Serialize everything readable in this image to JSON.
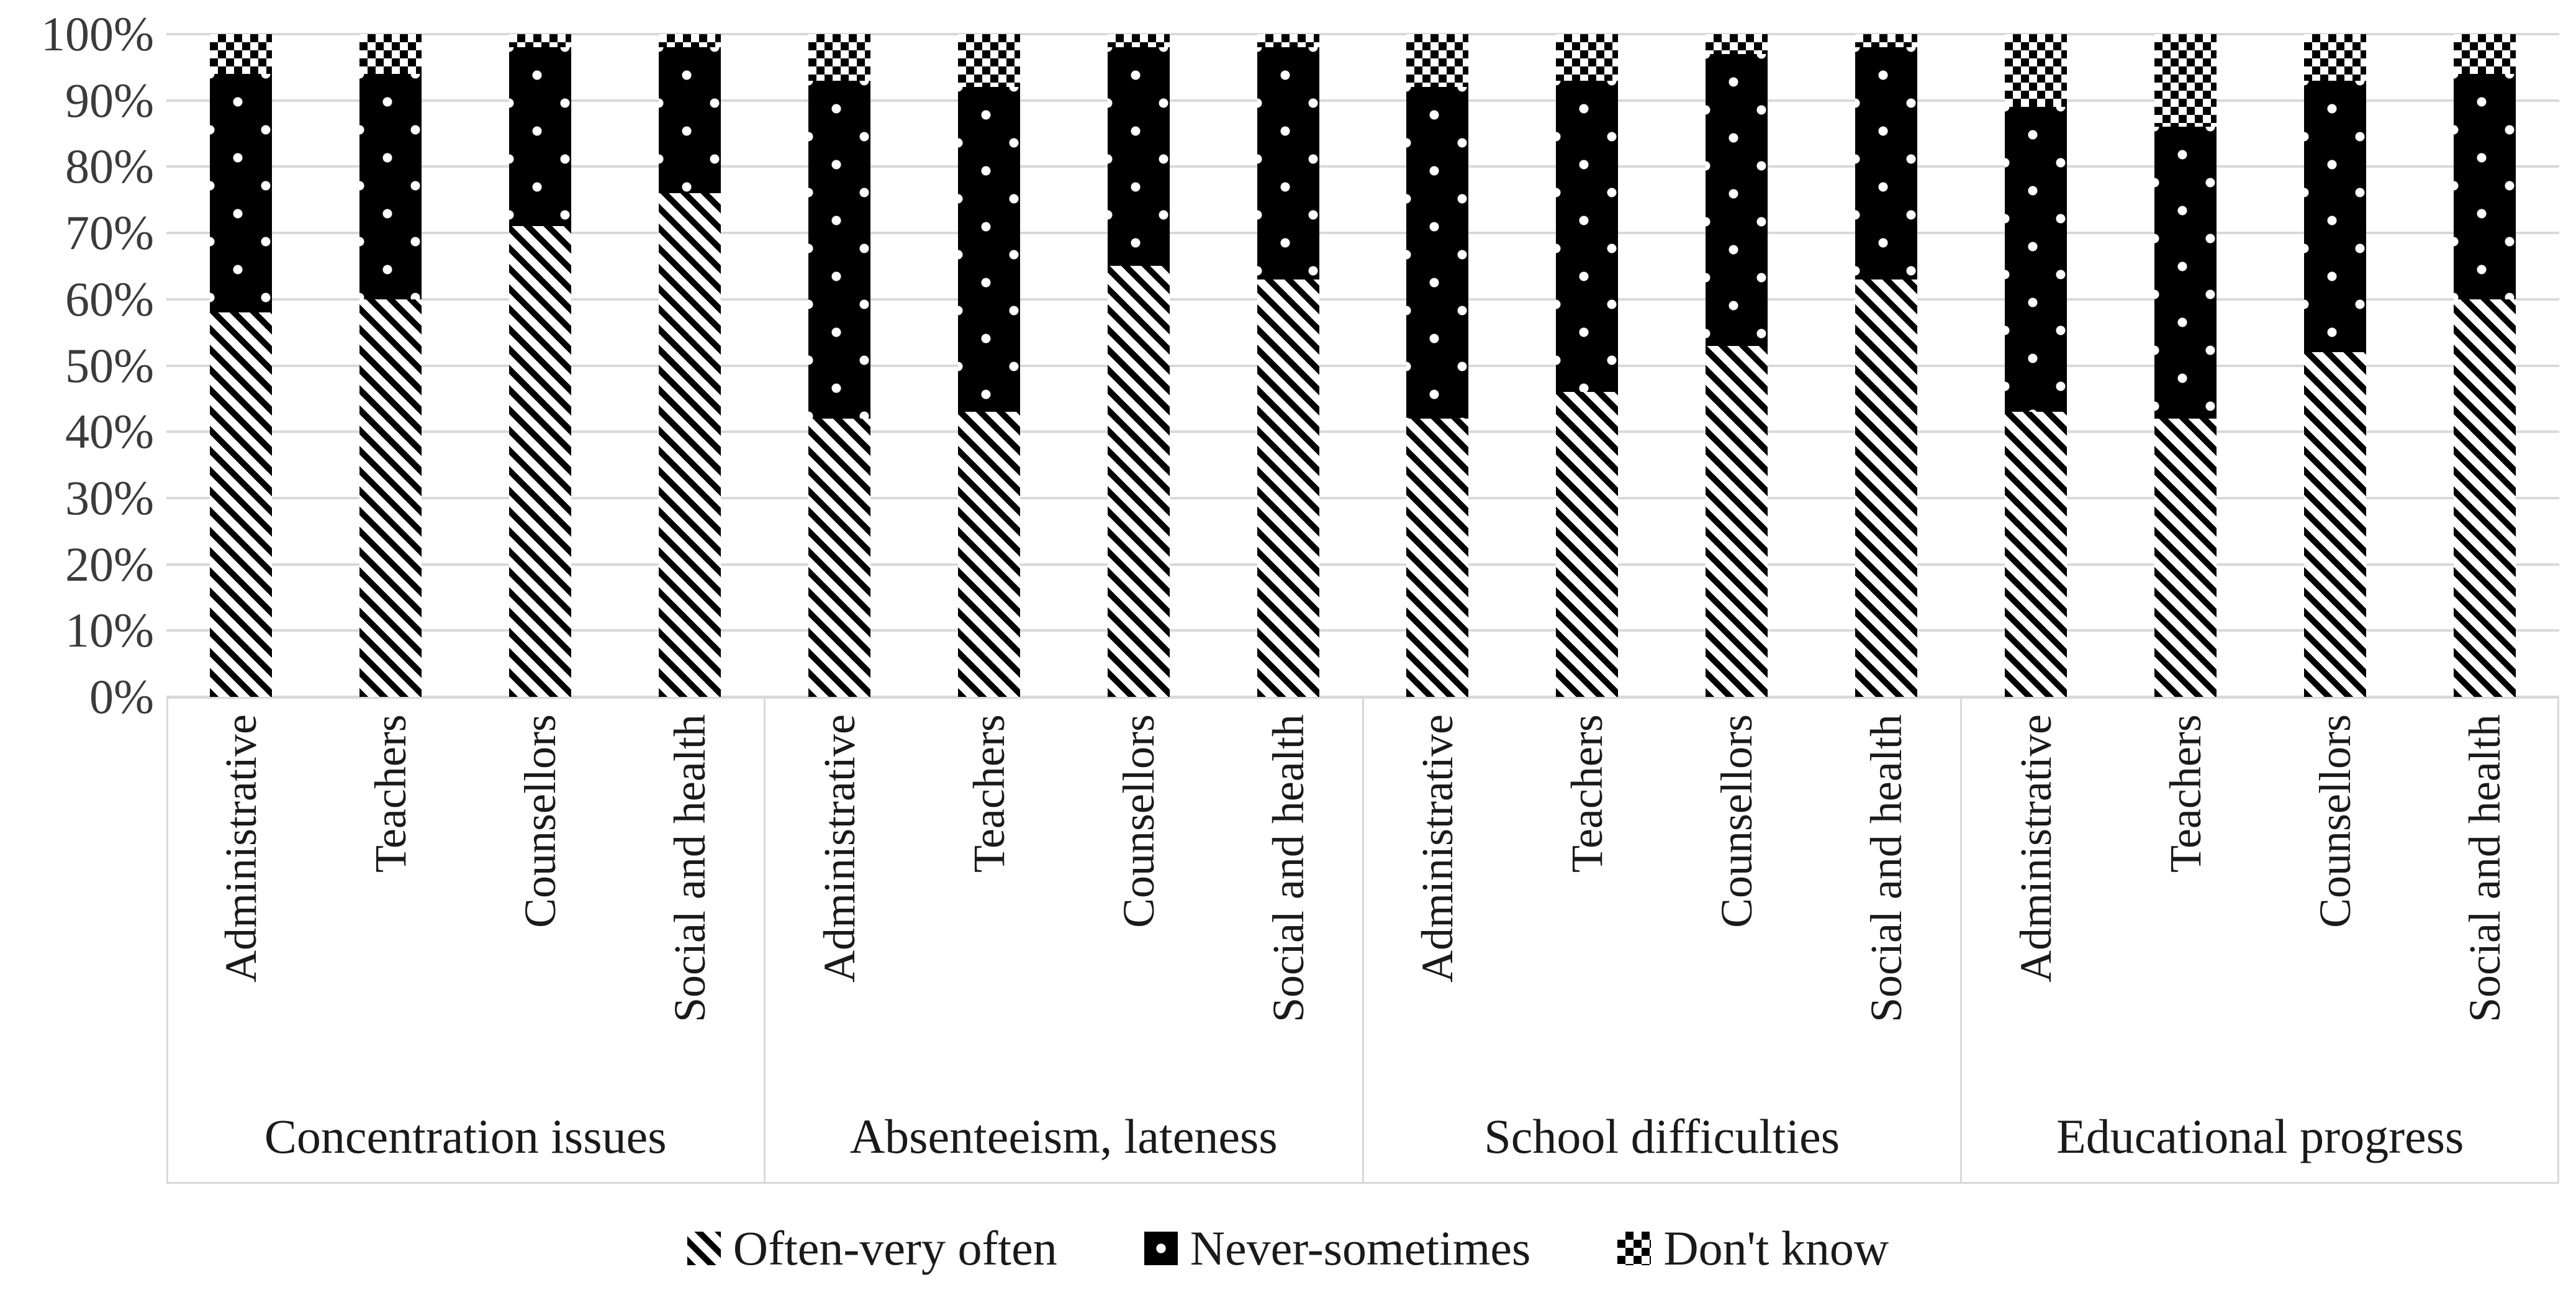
{
  "chart_data": {
    "type": "bar",
    "stacked": true,
    "orientation": "vertical",
    "unit": "%",
    "ylim": [
      0,
      100
    ],
    "grid": true,
    "y_ticks": [
      "0%",
      "10%",
      "20%",
      "30%",
      "40%",
      "50%",
      "60%",
      "70%",
      "80%",
      "90%",
      "100%"
    ],
    "legend_position": "bottom-center",
    "series_order": [
      "often_very_often",
      "never_sometimes",
      "dont_know"
    ],
    "legend": [
      {
        "key": "often_very_often",
        "name": "Often-very often",
        "pattern": "diagonal-stripes"
      },
      {
        "key": "never_sometimes",
        "name": "Never-sometimes",
        "pattern": "black-with-white-dots"
      },
      {
        "key": "dont_know",
        "name": "Don't know",
        "pattern": "diagonal-checker"
      }
    ],
    "groups": [
      {
        "label": "Concentration issues",
        "bars": [
          {
            "category": "Administrative",
            "often_very_often": 58,
            "never_sometimes": 36,
            "dont_know": 6
          },
          {
            "category": "Teachers",
            "often_very_often": 60,
            "never_sometimes": 34,
            "dont_know": 6
          },
          {
            "category": "Counsellors",
            "often_very_often": 71,
            "never_sometimes": 27,
            "dont_know": 2
          },
          {
            "category": "Social and health",
            "often_very_often": 76,
            "never_sometimes": 22,
            "dont_know": 2
          }
        ]
      },
      {
        "label": "Absenteeism, lateness",
        "bars": [
          {
            "category": "Administrative",
            "often_very_often": 42,
            "never_sometimes": 51,
            "dont_know": 7
          },
          {
            "category": "Teachers",
            "often_very_often": 43,
            "never_sometimes": 49,
            "dont_know": 8
          },
          {
            "category": "Counsellors",
            "often_very_often": 65,
            "never_sometimes": 33,
            "dont_know": 2
          },
          {
            "category": "Social and health",
            "often_very_often": 63,
            "never_sometimes": 35,
            "dont_know": 2
          }
        ]
      },
      {
        "label": "School difficulties",
        "bars": [
          {
            "category": "Administrative",
            "often_very_often": 42,
            "never_sometimes": 50,
            "dont_know": 8
          },
          {
            "category": "Teachers",
            "often_very_often": 46,
            "never_sometimes": 47,
            "dont_know": 7
          },
          {
            "category": "Counsellors",
            "often_very_often": 53,
            "never_sometimes": 44,
            "dont_know": 3
          },
          {
            "category": "Social and health",
            "often_very_often": 63,
            "never_sometimes": 35,
            "dont_know": 2
          }
        ]
      },
      {
        "label": "Educational progress",
        "bars": [
          {
            "category": "Administrative",
            "often_very_often": 43,
            "never_sometimes": 46,
            "dont_know": 11
          },
          {
            "category": "Teachers",
            "often_very_often": 42,
            "never_sometimes": 44,
            "dont_know": 14
          },
          {
            "category": "Counsellors",
            "often_very_often": 52,
            "never_sometimes": 41,
            "dont_know": 7
          },
          {
            "category": "Social and health",
            "often_very_often": 60,
            "never_sometimes": 34,
            "dont_know": 6
          }
        ]
      }
    ]
  },
  "colors": {
    "gridline": "#d9d9d9",
    "label_box_border": "#d9d9d9",
    "axis_text": "#3b3b3b",
    "pattern_foreground": "#000000",
    "pattern_background": "#ffffff"
  }
}
